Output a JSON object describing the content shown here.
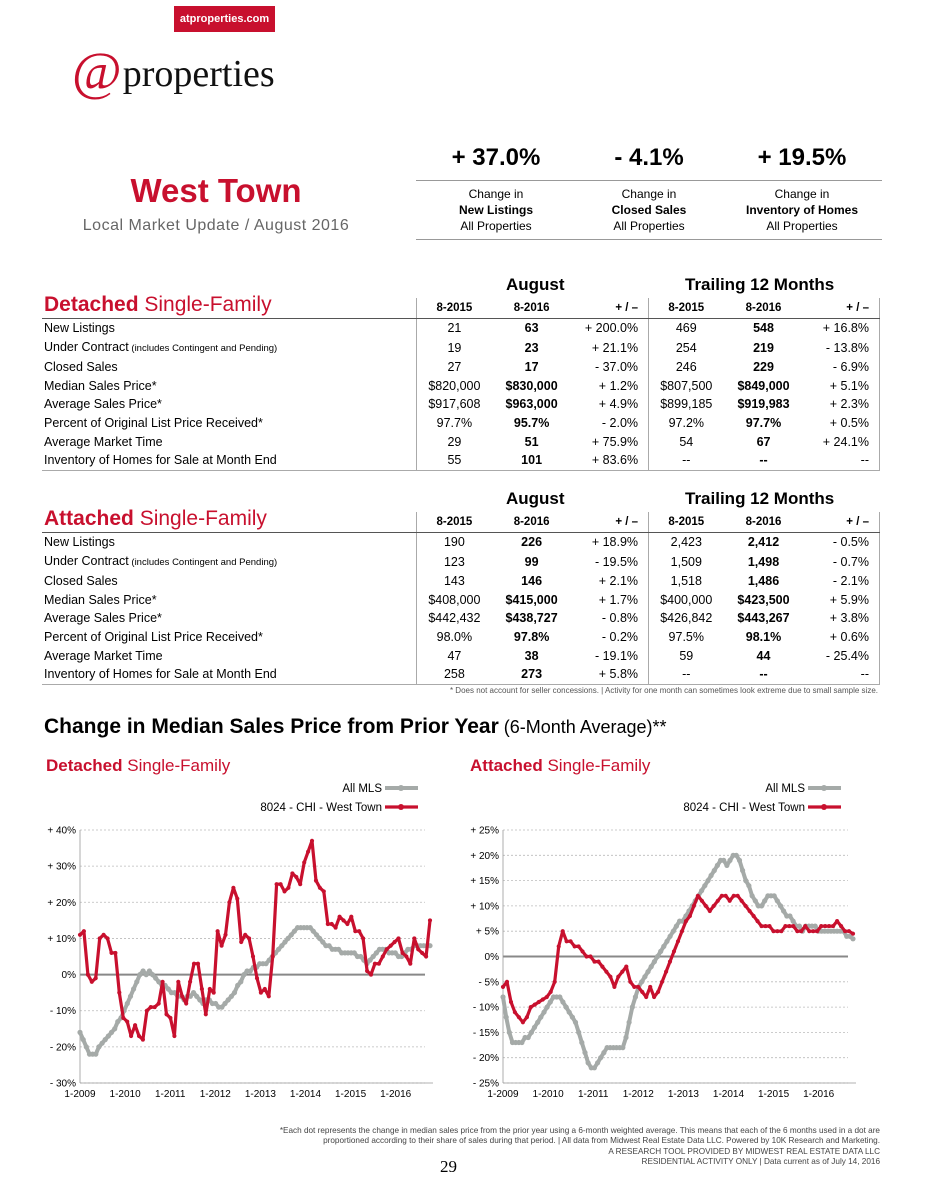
{
  "header": {
    "site_tag": "atproperties.com",
    "logo_at": "@",
    "logo_word": "properties"
  },
  "title": {
    "city": "West Town",
    "subtitle": "Local Market Update / August 2016"
  },
  "kpis": [
    {
      "value": "+ 37.0%",
      "line1": "Change in",
      "line2": "New Listings",
      "line3": "All Properties"
    },
    {
      "value": "- 4.1%",
      "line1": "Change in",
      "line2": "Closed Sales",
      "line3": "All Properties"
    },
    {
      "value": "+ 19.5%",
      "line1": "Change in",
      "line2": "Inventory of Homes",
      "line3": "All Properties"
    }
  ],
  "group_labels": {
    "month": "August",
    "trailing": "Trailing 12 Months"
  },
  "col_headers": [
    "8-2015",
    "8-2016",
    "+ / –",
    "8-2015",
    "8-2016",
    "+ / –"
  ],
  "detached": {
    "title_bold": "Detached",
    "title_rest": " Single-Family",
    "rows": [
      {
        "label": "New Listings",
        "note": "",
        "v": [
          "21",
          "63",
          "+ 200.0%",
          "469",
          "548",
          "+ 16.8%"
        ]
      },
      {
        "label": "Under Contract",
        "note": " (includes Contingent and Pending)",
        "v": [
          "19",
          "23",
          "+ 21.1%",
          "254",
          "219",
          "- 13.8%"
        ]
      },
      {
        "label": "Closed Sales",
        "note": "",
        "v": [
          "27",
          "17",
          "- 37.0%",
          "246",
          "229",
          "- 6.9%"
        ]
      },
      {
        "label": "Median Sales Price*",
        "note": "",
        "v": [
          "$820,000",
          "$830,000",
          "+ 1.2%",
          "$807,500",
          "$849,000",
          "+ 5.1%"
        ]
      },
      {
        "label": "Average Sales Price*",
        "note": "",
        "v": [
          "$917,608",
          "$963,000",
          "+ 4.9%",
          "$899,185",
          "$919,983",
          "+ 2.3%"
        ]
      },
      {
        "label": "Percent of Original List Price Received*",
        "note": "",
        "v": [
          "97.7%",
          "95.7%",
          "- 2.0%",
          "97.2%",
          "97.7%",
          "+ 0.5%"
        ]
      },
      {
        "label": "Average Market Time",
        "note": "",
        "v": [
          "29",
          "51",
          "+ 75.9%",
          "54",
          "67",
          "+ 24.1%"
        ]
      },
      {
        "label": "Inventory of Homes for Sale at Month End",
        "note": "",
        "v": [
          "55",
          "101",
          "+ 83.6%",
          "--",
          "--",
          "--"
        ]
      }
    ]
  },
  "attached": {
    "title_bold": "Attached",
    "title_rest": " Single-Family",
    "rows": [
      {
        "label": "New Listings",
        "note": "",
        "v": [
          "190",
          "226",
          "+ 18.9%",
          "2,423",
          "2,412",
          "- 0.5%"
        ]
      },
      {
        "label": "Under Contract",
        "note": " (includes Contingent and Pending)",
        "v": [
          "123",
          "99",
          "- 19.5%",
          "1,509",
          "1,498",
          "- 0.7%"
        ]
      },
      {
        "label": "Closed Sales",
        "note": "",
        "v": [
          "143",
          "146",
          "+ 2.1%",
          "1,518",
          "1,486",
          "- 2.1%"
        ]
      },
      {
        "label": "Median Sales Price*",
        "note": "",
        "v": [
          "$408,000",
          "$415,000",
          "+ 1.7%",
          "$400,000",
          "$423,500",
          "+ 5.9%"
        ]
      },
      {
        "label": "Average Sales Price*",
        "note": "",
        "v": [
          "$442,432",
          "$438,727",
          "- 0.8%",
          "$426,842",
          "$443,267",
          "+ 3.8%"
        ]
      },
      {
        "label": "Percent of Original List Price Received*",
        "note": "",
        "v": [
          "98.0%",
          "97.8%",
          "- 0.2%",
          "97.5%",
          "98.1%",
          "+ 0.6%"
        ]
      },
      {
        "label": "Average Market Time",
        "note": "",
        "v": [
          "47",
          "38",
          "- 19.1%",
          "59",
          "44",
          "- 25.4%"
        ]
      },
      {
        "label": "Inventory of Homes for Sale at Month End",
        "note": "",
        "v": [
          "258",
          "273",
          "+ 5.8%",
          "--",
          "--",
          "--"
        ]
      }
    ]
  },
  "table_footnote": "* Does not account for seller concessions.  |  Activity for one month can sometimes look extreme due to small sample size.",
  "chart_section": {
    "title_bold": "Change in Median Sales Price from Prior Year",
    "title_rest": " (6-Month Average)**"
  },
  "chart_data": [
    {
      "type": "line",
      "title_bold": "Detached",
      "title_rest": " Single-Family",
      "x_ticks": [
        "1-2009",
        "1-2010",
        "1-2011",
        "1-2012",
        "1-2013",
        "1-2014",
        "1-2015",
        "1-2016"
      ],
      "y_ticks": [
        "+ 40%",
        "+ 30%",
        "+ 20%",
        "+ 10%",
        "0%",
        "- 10%",
        "- 20%",
        "- 30%"
      ],
      "ylim": [
        -30,
        40
      ],
      "x_range": [
        "2009-01",
        "2016-08"
      ],
      "legend_position": "top-right",
      "series": [
        {
          "name": "All MLS",
          "color": "#a5aaa8",
          "values": [
            -16,
            -18,
            -20,
            -22,
            -22,
            -22,
            -20,
            -19,
            -18,
            -17,
            -16,
            -15,
            -13,
            -12,
            -10,
            -8,
            -6,
            -4,
            -2,
            0,
            1,
            0,
            1,
            0,
            -1,
            -2,
            -3,
            -3,
            -4,
            -5,
            -5,
            -6,
            -6,
            -7,
            -6,
            -6,
            -5,
            -6,
            -7,
            -8,
            -7,
            -7,
            -8,
            -8,
            -9,
            -9,
            -8,
            -7,
            -6,
            -5,
            -3,
            -2,
            0,
            1,
            1,
            2,
            2,
            3,
            3,
            3,
            4,
            5,
            6,
            7,
            8,
            9,
            10,
            11,
            12,
            13,
            13,
            13,
            13,
            13,
            12,
            11,
            10,
            9,
            8,
            8,
            7,
            7,
            7,
            6,
            6,
            6,
            6,
            6,
            5,
            5,
            4,
            3,
            4,
            5,
            6,
            7,
            7,
            7,
            6,
            6,
            6,
            5,
            5,
            6,
            7,
            7,
            8,
            8,
            8,
            8,
            8,
            8
          ]
        },
        {
          "name": "8024 - CHI - West Town",
          "color": "#c8102e",
          "values": [
            11,
            12,
            0,
            -2,
            -1,
            10,
            11,
            10,
            6,
            6,
            -5,
            -12,
            -13,
            -17,
            -14,
            -17,
            -18,
            -10,
            -9,
            -9,
            -8,
            -2,
            -11,
            -12,
            -17,
            -2,
            -6,
            -8,
            -2,
            3,
            3,
            -4,
            -11,
            -4,
            -5,
            12,
            8,
            11,
            20,
            24,
            21,
            9,
            11,
            10,
            5,
            -1,
            -5,
            -4,
            -6,
            5,
            25,
            25,
            23,
            24,
            28,
            27,
            25,
            31,
            34,
            37,
            26,
            24,
            23,
            14,
            14,
            13,
            16,
            15,
            14,
            16,
            12,
            12,
            10,
            1,
            0,
            3,
            3,
            5,
            7,
            8,
            9,
            10,
            6,
            5,
            3,
            10,
            7,
            6,
            5,
            15
          ]
        }
      ]
    },
    {
      "type": "line",
      "title_bold": "Attached",
      "title_rest": " Single-Family",
      "x_ticks": [
        "1-2009",
        "1-2010",
        "1-2011",
        "1-2012",
        "1-2013",
        "1-2014",
        "1-2015",
        "1-2016"
      ],
      "y_ticks": [
        "+ 25%",
        "+ 20%",
        "+ 15%",
        "+ 10%",
        "+ 5%",
        "0%",
        "- 5%",
        "- 10%",
        "- 15%",
        "- 20%",
        "- 25%"
      ],
      "ylim": [
        -25,
        25
      ],
      "x_range": [
        "2009-01",
        "2016-08"
      ],
      "legend_position": "top-right",
      "series": [
        {
          "name": "All MLS",
          "color": "#a5aaa8",
          "values": [
            -8,
            -12,
            -15,
            -17,
            -17,
            -17,
            -17,
            -16,
            -16,
            -15,
            -14,
            -13,
            -12,
            -11,
            -10,
            -9,
            -8,
            -8,
            -8,
            -9,
            -10,
            -11,
            -12,
            -13,
            -15,
            -17,
            -19,
            -21,
            -22,
            -22,
            -21,
            -20,
            -19,
            -18,
            -18,
            -18,
            -18,
            -18,
            -18,
            -16,
            -13,
            -10,
            -8,
            -6,
            -5,
            -4,
            -3,
            -2,
            -1,
            0,
            1,
            2,
            3,
            4,
            5,
            6,
            7,
            7,
            8,
            9,
            10,
            11,
            12,
            13,
            14,
            15,
            16,
            17,
            18,
            19,
            19,
            18,
            19,
            20,
            20,
            19,
            17,
            15,
            14,
            12,
            11,
            10,
            10,
            11,
            12,
            12,
            12,
            11,
            10,
            9,
            8,
            8,
            7,
            6,
            6,
            5,
            6,
            6,
            6,
            6,
            5,
            5,
            5,
            5,
            5,
            5,
            5,
            5,
            5,
            4,
            4,
            3.5
          ]
        },
        {
          "name": "8024 - CHI - West Town",
          "color": "#c8102e",
          "values": [
            -6,
            -5,
            -9,
            -11,
            -12,
            -13,
            -12,
            -10,
            -9.5,
            -9,
            -8.5,
            -8,
            -7,
            -5,
            2,
            5,
            3,
            3,
            2,
            2,
            1,
            0,
            0,
            -1,
            -1,
            -2,
            -3,
            -4,
            -6,
            -4,
            -3,
            -2,
            -5,
            -6,
            -6,
            -7,
            -8,
            -6,
            -8,
            -7,
            -5,
            -3,
            -1,
            1,
            3,
            5,
            7,
            8,
            10,
            12,
            11,
            10,
            9,
            10,
            11,
            12,
            12,
            11,
            12,
            12,
            11,
            10,
            9,
            8,
            7,
            6,
            6,
            6,
            5,
            5,
            5,
            6,
            6,
            6,
            5,
            5,
            6,
            5,
            5,
            5,
            6,
            6,
            6,
            6,
            7,
            6,
            5,
            5,
            4.5
          ]
        }
      ]
    }
  ],
  "footer": {
    "line1": "*Each dot represents the change in median sales price from the prior year using a 6-month weighted average. This means that each of the 6 months used in a dot are",
    "line2": "proportioned according to their share of sales during that period.  |  All data from Midwest Real Estate Data LLC. Powered by 10K Research and Marketing.",
    "line3": "A RESEARCH TOOL PROVIDED BY MIDWEST REAL ESTATE DATA LLC",
    "line4": "RESIDENTIAL ACTIVITY ONLY  |  Data current as of July 14, 2016",
    "page": "29"
  }
}
